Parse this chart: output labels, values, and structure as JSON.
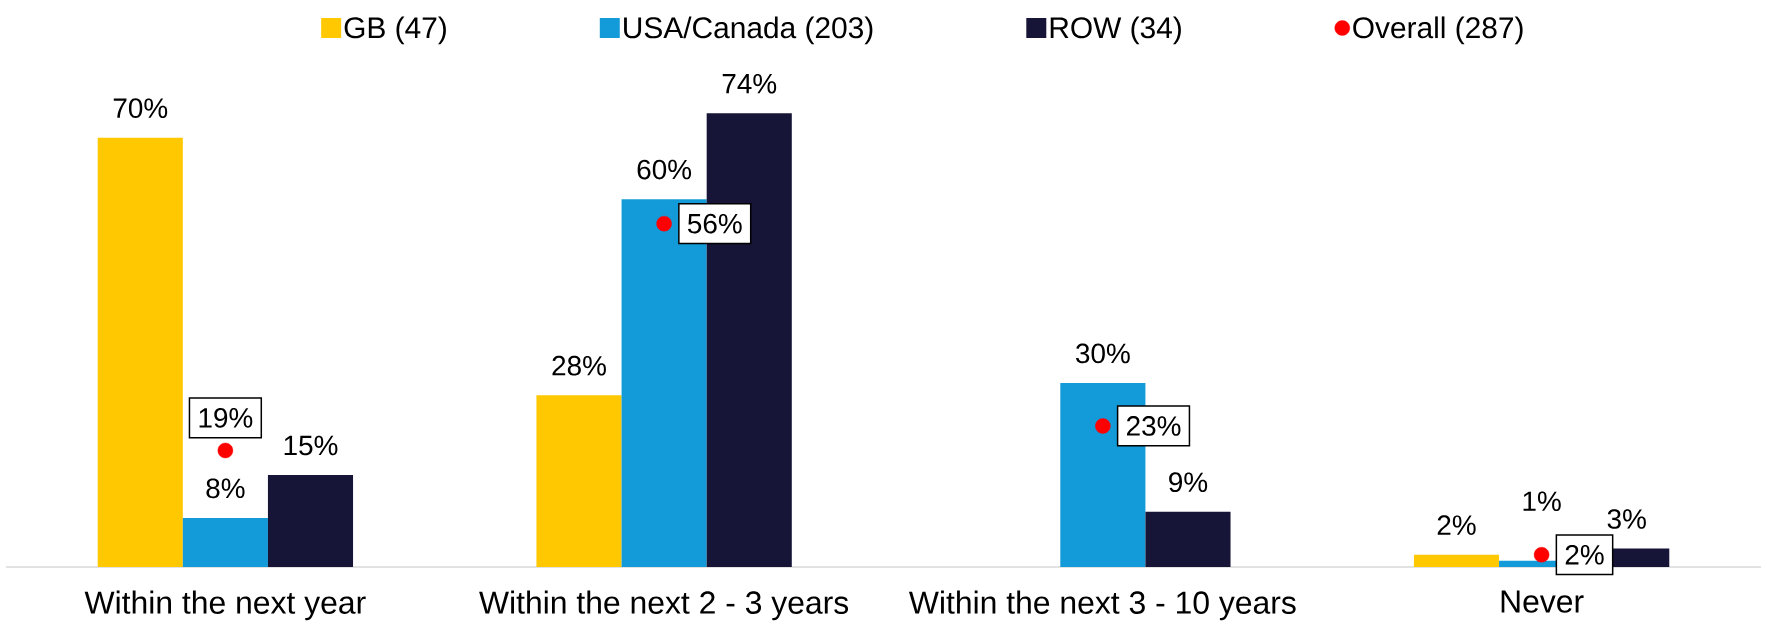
{
  "chart_data": {
    "type": "bar",
    "categories": [
      "Within the next year",
      "Within the next 2 - 3 years",
      "Within the next 3 - 10 years",
      "Never"
    ],
    "series": [
      {
        "name": "GB (47)",
        "color": "#ffc800",
        "values": [
          70,
          28,
          null,
          2
        ],
        "value_labels": [
          "70%",
          "28%",
          null,
          "2%"
        ]
      },
      {
        "name": "USA/Canada (203)",
        "color": "#139bd9",
        "values": [
          8,
          60,
          30,
          1
        ],
        "value_labels": [
          "8%",
          "60%",
          "30%",
          "1%"
        ]
      },
      {
        "name": "ROW (34)",
        "color": "#161537",
        "values": [
          15,
          74,
          9,
          3
        ],
        "value_labels": [
          "15%",
          "74%",
          "9%",
          "3%"
        ]
      },
      {
        "name": "Overall (287)",
        "type": "scatter",
        "marker": "circle",
        "color": "#ff0000",
        "x": [
          "Within the next year",
          "Within the next 2 - 3 years",
          "Within the next 3 - 10 years",
          "Never"
        ],
        "values": [
          19,
          56,
          23,
          2
        ],
        "value_labels": [
          "19%",
          "56%",
          "23%",
          "2%"
        ]
      }
    ],
    "legend": "top"
  }
}
